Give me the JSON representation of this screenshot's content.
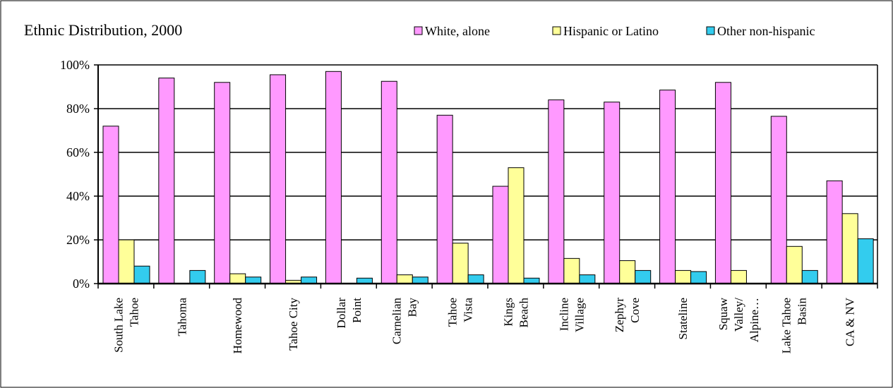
{
  "chart_data": {
    "type": "bar",
    "title": "Ethnic Distribution, 2000",
    "xlabel": "",
    "ylabel": "",
    "ylim": [
      0,
      100
    ],
    "yticks": [
      "0%",
      "20%",
      "40%",
      "60%",
      "80%",
      "100%"
    ],
    "grid": true,
    "legend_position": "top-right",
    "categories": [
      [
        "South Lake",
        "Tahoe"
      ],
      [
        "Tahoma"
      ],
      [
        "Homewood"
      ],
      [
        "Tahoe City"
      ],
      [
        "Dollar",
        "Point"
      ],
      [
        "Carnelian",
        "Bay"
      ],
      [
        "Tahoe",
        "Vista"
      ],
      [
        "Kings",
        "Beach"
      ],
      [
        "Incline",
        "Village"
      ],
      [
        "Zephyr",
        "Cove"
      ],
      [
        "Stateline"
      ],
      [
        "Squaw",
        "Valley/",
        "Alpine…"
      ],
      [
        "Lake Tahoe",
        "Basin"
      ],
      [
        "CA & NV"
      ]
    ],
    "series": [
      {
        "name": "White, alone",
        "color": "#ff99ff",
        "values": [
          72,
          94,
          92,
          95.5,
          97,
          92.5,
          77,
          44.5,
          84,
          83,
          88.5,
          92,
          76.5,
          47
        ]
      },
      {
        "name": "Hispanic or Latino",
        "color": "#ffff99",
        "values": [
          20,
          0,
          4.5,
          1.5,
          0,
          4,
          18.5,
          53,
          11.5,
          10.5,
          6,
          6,
          17,
          32
        ]
      },
      {
        "name": "Other non-hispanic",
        "color": "#33ccee",
        "values": [
          8,
          6,
          3,
          3,
          2.5,
          3,
          4,
          2.5,
          4,
          6,
          5.5,
          0,
          6,
          20.5
        ]
      }
    ]
  }
}
